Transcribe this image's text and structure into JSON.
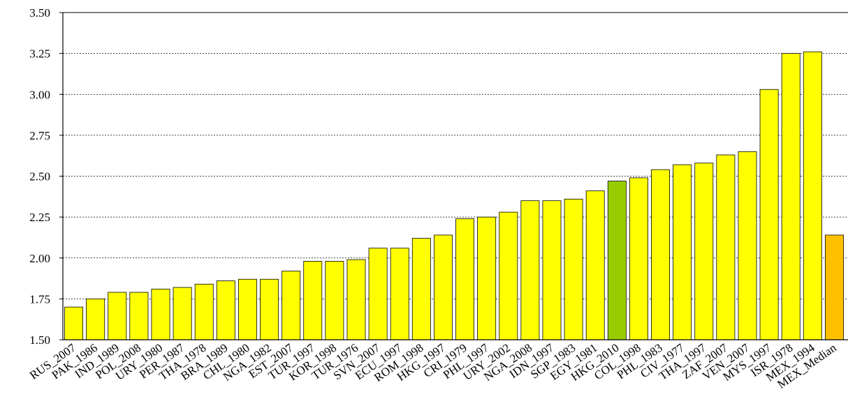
{
  "chart_data": {
    "type": "bar",
    "categories": [
      "RUS_2007",
      "PAK_1986",
      "IND_1989",
      "POL_2008",
      "URY_1980",
      "PER_1987",
      "THA_1978",
      "BRA_1989",
      "CHL_1980",
      "NGA_1982",
      "EST_2007",
      "TUR_1997",
      "KOR_1998",
      "TUR_1976",
      "SVN_2007",
      "ECU_1997",
      "ROM_1998",
      "HKG_1997",
      "CRI_1979",
      "PHL_1997",
      "URY_2002",
      "NGA_2008",
      "IDN_1997",
      "SGP_1983",
      "EGY_1981",
      "HKG_2010",
      "COL_1998",
      "PHL_1983",
      "CIV_1977",
      "THA_1997",
      "ZAF_2007",
      "VEN_2007",
      "MYS_1997",
      "ISR_1978",
      "MEX_1994",
      "MEX_Median"
    ],
    "values": [
      1.7,
      1.75,
      1.79,
      1.79,
      1.81,
      1.82,
      1.84,
      1.86,
      1.87,
      1.87,
      1.92,
      1.98,
      1.98,
      1.99,
      2.06,
      2.06,
      2.12,
      2.14,
      2.24,
      2.25,
      2.28,
      2.35,
      2.35,
      2.36,
      2.41,
      2.47,
      2.49,
      2.54,
      2.57,
      2.58,
      2.63,
      2.65,
      3.03,
      3.25,
      3.26,
      2.14
    ],
    "colors": [
      "#ffff00",
      "#ffff00",
      "#ffff00",
      "#ffff00",
      "#ffff00",
      "#ffff00",
      "#ffff00",
      "#ffff00",
      "#ffff00",
      "#ffff00",
      "#ffff00",
      "#ffff00",
      "#ffff00",
      "#ffff00",
      "#ffff00",
      "#ffff00",
      "#ffff00",
      "#ffff00",
      "#ffff00",
      "#ffff00",
      "#ffff00",
      "#ffff00",
      "#ffff00",
      "#ffff00",
      "#ffff00",
      "#99cc00",
      "#ffff00",
      "#ffff00",
      "#ffff00",
      "#ffff00",
      "#ffff00",
      "#ffff00",
      "#ffff00",
      "#ffff00",
      "#ffff00",
      "#ffc000"
    ],
    "ylim": [
      1.5,
      3.5
    ],
    "yticks": [
      {
        "value": 1.5,
        "label": "1.50"
      },
      {
        "value": 1.75,
        "label": "1.75"
      },
      {
        "value": 2,
        "label": "2.00"
      },
      {
        "value": 2.25,
        "label": "2.25"
      },
      {
        "value": 2.5,
        "label": "2.50"
      },
      {
        "value": 2.75,
        "label": "2.75"
      },
      {
        "value": 3,
        "label": "3.00"
      },
      {
        "value": 3.25,
        "label": "3.25"
      },
      {
        "value": 3.5,
        "label": "3.50"
      }
    ],
    "grid": true
  }
}
